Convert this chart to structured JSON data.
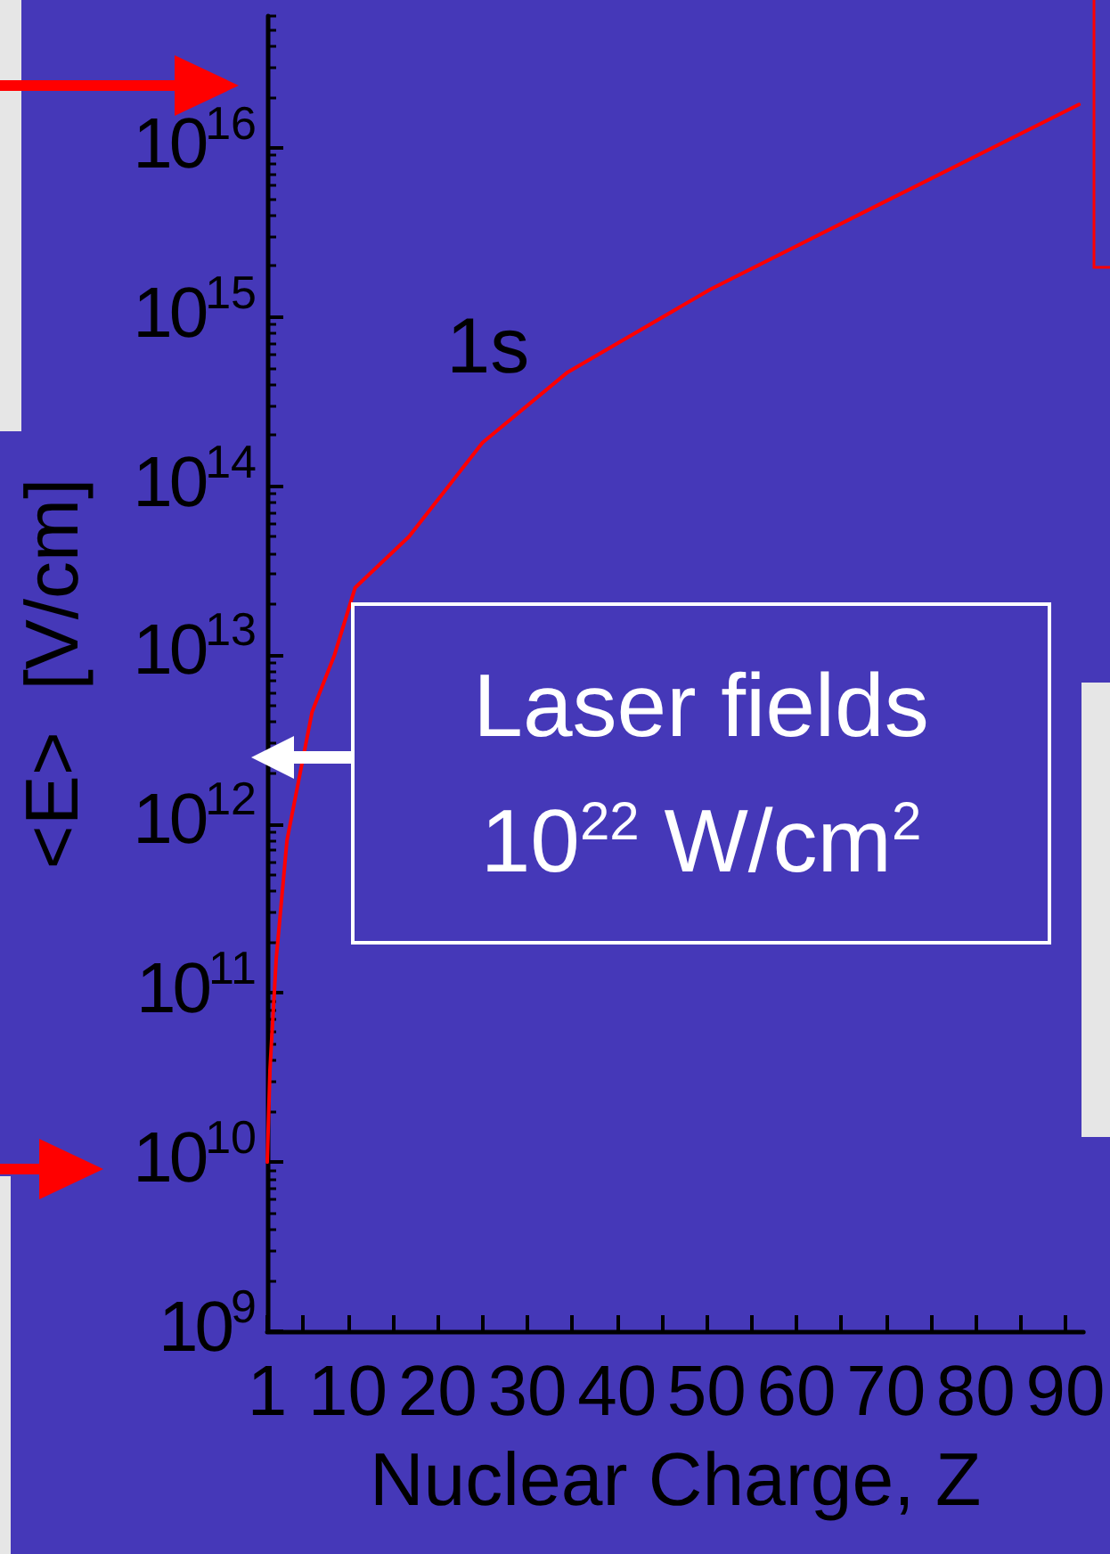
{
  "chart_data": {
    "type": "line",
    "xlabel": "Nuclear Charge, Z",
    "ylabel": "<E>  [V/cm]",
    "log": "y",
    "grid": false,
    "legend": false,
    "marker": "none",
    "line_style": "solid",
    "xlim": [
      1,
      92
    ],
    "ylim": [
      1000000000,
      60000000000000000
    ],
    "xticks": [
      1,
      {
        "value": 5,
        "label": null
      },
      10,
      {
        "value": 15,
        "label": null
      },
      20,
      {
        "value": 25,
        "label": null
      },
      30,
      {
        "value": 35,
        "label": null
      },
      40,
      {
        "value": 45,
        "label": null
      },
      50,
      {
        "value": 55,
        "label": null
      },
      60,
      {
        "value": 65,
        "label": null
      },
      70,
      {
        "value": 75,
        "label": null
      },
      80,
      {
        "value": 85,
        "label": null
      },
      90
    ],
    "yticks": [
      {
        "value": 1000000000,
        "label": "10$^{9}$"
      },
      {
        "value": 10000000000,
        "label": "10$^{10}$"
      },
      {
        "value": 100000000000,
        "label": "10$^{11}$"
      },
      {
        "value": 1000000000000,
        "label": "10$^{12}$"
      },
      {
        "value": 10000000000000,
        "label": "10$^{13}$"
      },
      {
        "value": 100000000000000,
        "label": "10$^{14}$"
      },
      {
        "value": 1000000000000000,
        "label": "10$^{15}$"
      },
      {
        "value": 10000000000000000,
        "label": "10$^{16}$"
      }
    ],
    "series": [
      {
        "name": "1s",
        "color": "#ff0000",
        "x": [
          1,
          1.3,
          2,
          3.2,
          6,
          8.5,
          10.8,
          16.8,
          25,
          34.5,
          50.4,
          69.2,
          91.5
        ],
        "values": [
          10000000000,
          35000000000,
          160000000000,
          800000000000,
          4600000000000,
          10000000000000,
          25000000000000,
          50000000000000,
          180000000000000,
          470000000000000,
          1450000000000000,
          4600000000000000,
          18000000000000000
        ]
      }
    ],
    "annotations": [
      "Laser fields 10$^{22}$ W/cm$^{2}$"
    ]
  }
}
